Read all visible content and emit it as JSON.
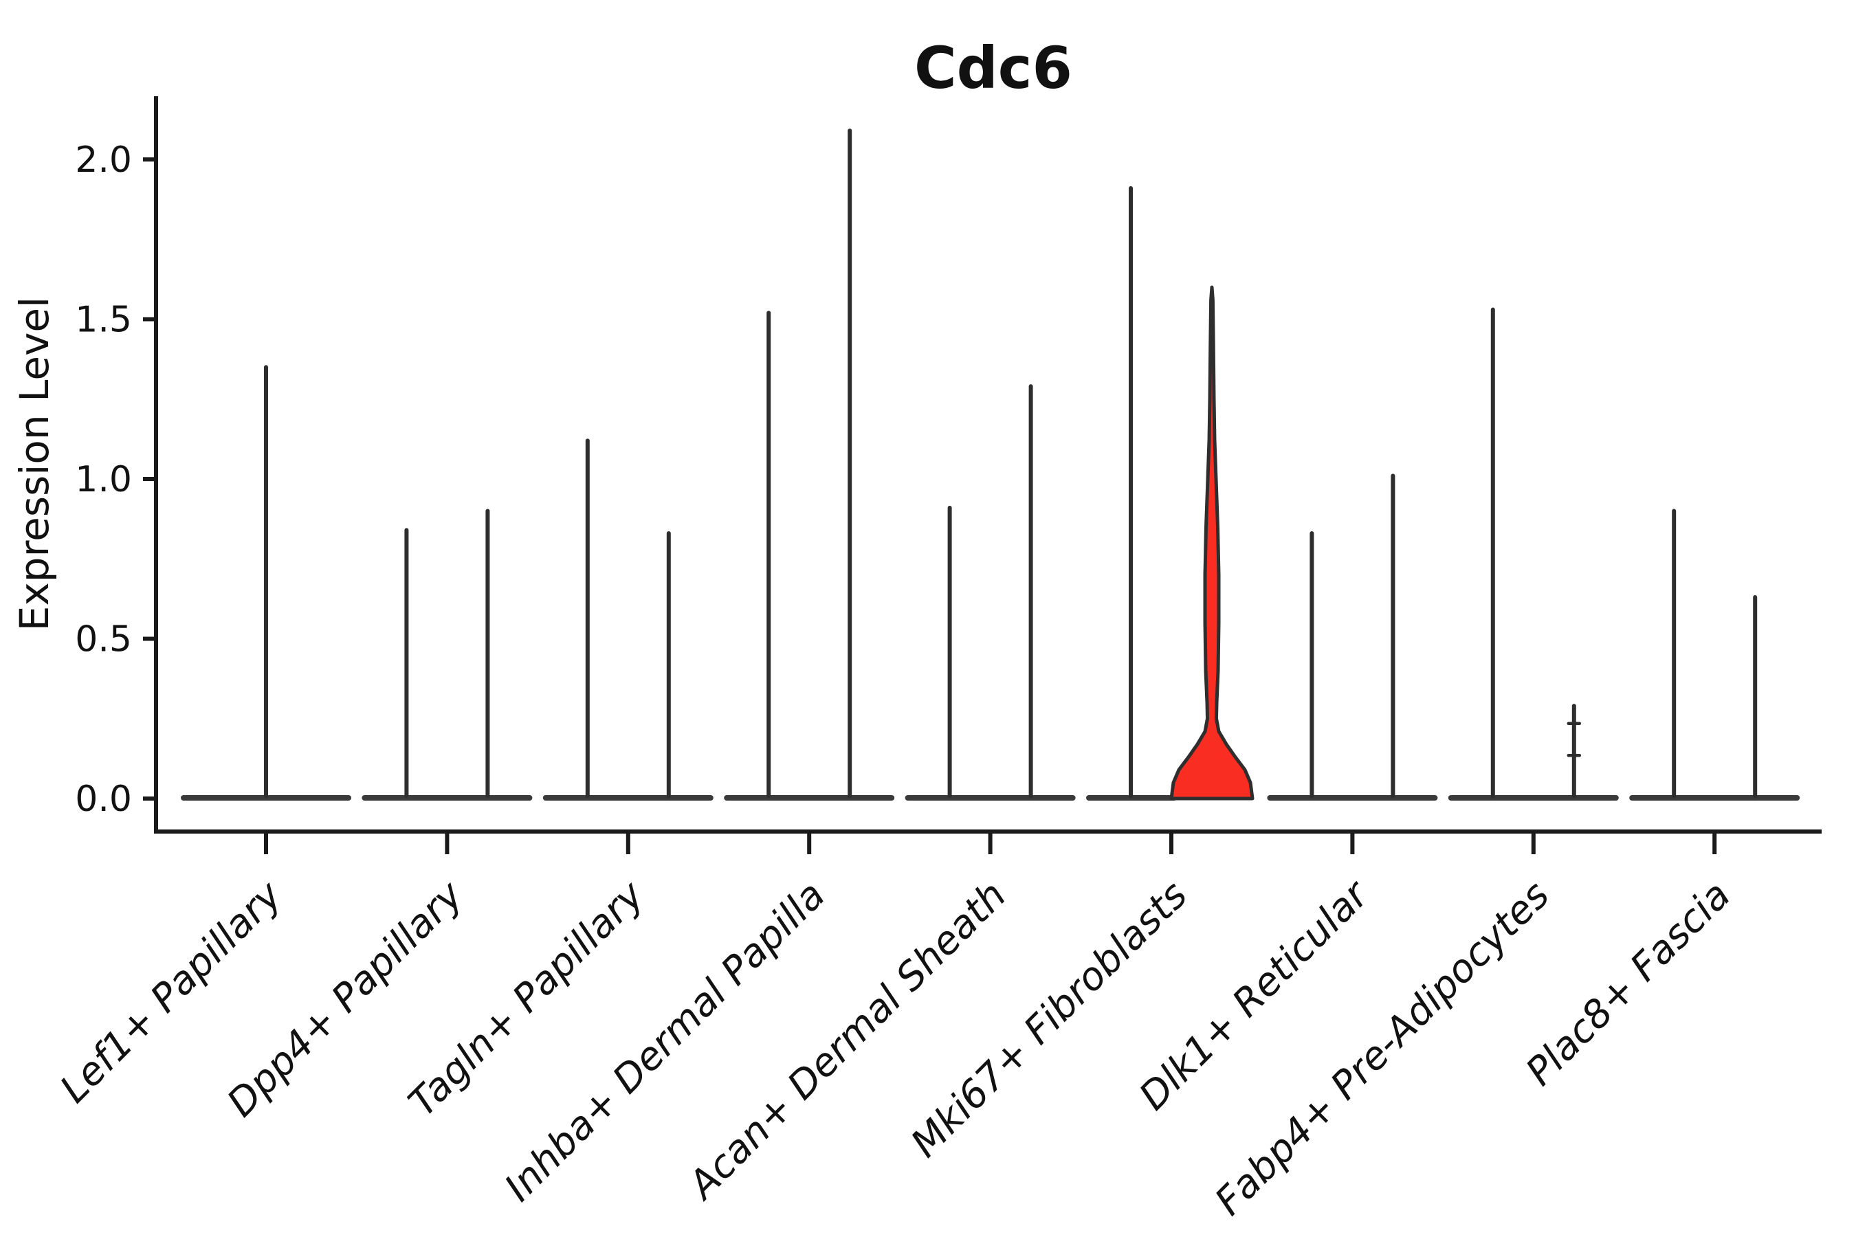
{
  "title": "Cdc6",
  "y_axis": {
    "label": "Expression Level",
    "tick_labels": [
      "0.0",
      "0.5",
      "1.0",
      "1.5",
      "2.0"
    ]
  },
  "chart_data": {
    "type": "violin",
    "title": "Cdc6",
    "xlabel": "",
    "ylabel": "Expression Level",
    "ylim": [
      0,
      2.2
    ],
    "yticks": [
      0.0,
      0.5,
      1.0,
      1.5,
      2.0
    ],
    "ytick_labels": [
      "0.0",
      "0.5",
      "1.0",
      "1.5",
      "2.0"
    ],
    "grid": false,
    "legend": "none",
    "categories": [
      "Lef1+ Papillary",
      "Dpp4+ Papillary",
      "Tagln+ Papillary",
      "Inhba+ Dermal Papilla",
      "Acan+ Dermal Sheath",
      "Mki67+ Fibroblasts",
      "Dlk1+ Reticular",
      "Fabp4+ Pre-Adipocytes",
      "Plac8+ Fascia"
    ],
    "violins": [
      {
        "category": "Lef1+ Papillary",
        "spikes": [
          {
            "side": "center",
            "max": 1.35
          }
        ]
      },
      {
        "category": "Dpp4+ Papillary",
        "spikes": [
          {
            "side": "left",
            "max": 0.84
          },
          {
            "side": "right",
            "max": 0.9
          }
        ]
      },
      {
        "category": "Tagln+ Papillary",
        "spikes": [
          {
            "side": "left",
            "max": 1.12
          },
          {
            "side": "right",
            "max": 0.83
          }
        ]
      },
      {
        "category": "Inhba+ Dermal Papilla",
        "spikes": [
          {
            "side": "left",
            "max": 1.52
          },
          {
            "side": "right",
            "max": 2.09
          }
        ]
      },
      {
        "category": "Acan+ Dermal Sheath",
        "spikes": [
          {
            "side": "left",
            "max": 0.91
          },
          {
            "side": "right",
            "max": 1.29
          }
        ]
      },
      {
        "category": "Mki67+ Fibroblasts",
        "spikes": [
          {
            "side": "left",
            "max": 1.91
          }
        ],
        "highlight": {
          "side": "right",
          "max": 1.6,
          "body_top": 0.25,
          "fill": "#fa2d23"
        }
      },
      {
        "category": "Dlk1+ Reticular",
        "spikes": [
          {
            "side": "left",
            "max": 0.83
          },
          {
            "side": "right",
            "max": 1.01
          }
        ]
      },
      {
        "category": "Fabp4+ Pre-Adipocytes",
        "spikes": [
          {
            "side": "left",
            "max": 1.53
          },
          {
            "side": "right",
            "max": 0.29,
            "nubs": [
              0.235,
              0.135
            ]
          }
        ]
      },
      {
        "category": "Plac8+ Fascia",
        "spikes": [
          {
            "side": "left",
            "max": 0.9
          },
          {
            "side": "right",
            "max": 0.63
          }
        ]
      }
    ],
    "colors": {
      "highlight_fill": "#fa2d23",
      "violin_outline": "#2e2e2e",
      "axis": "#1a1a1a",
      "text": "#111111"
    }
  }
}
